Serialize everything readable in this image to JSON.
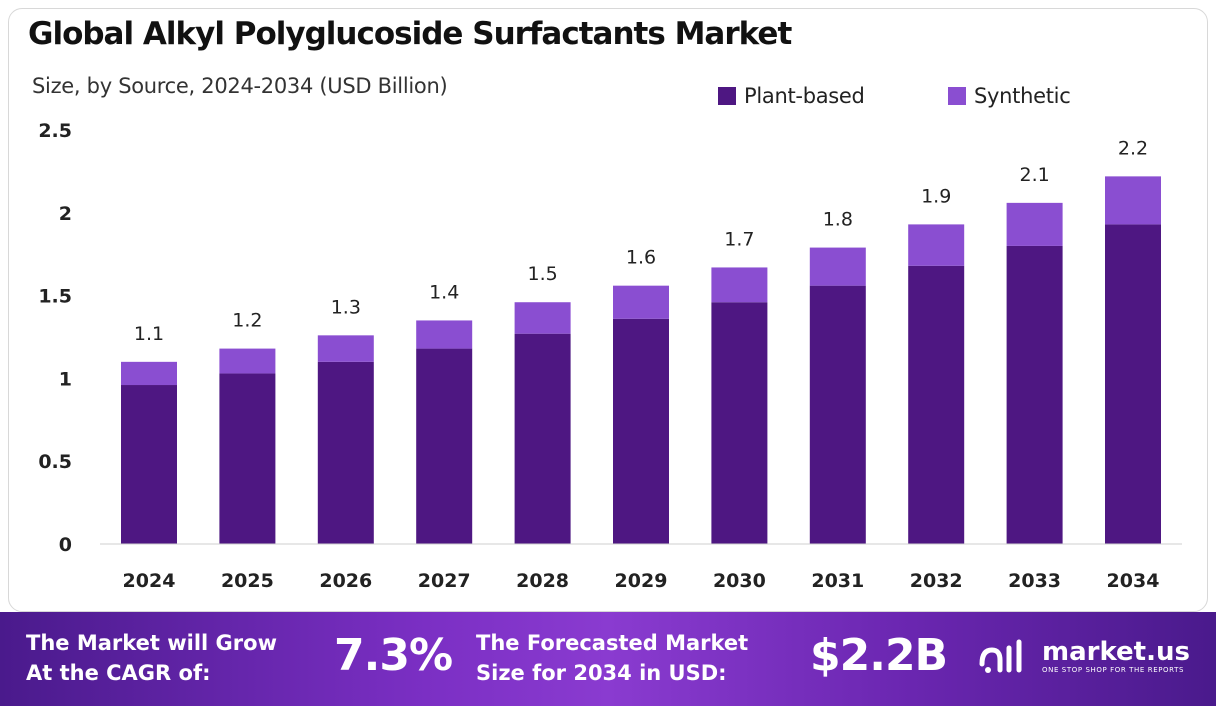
{
  "title": "Global Alkyl Polyglucoside Surfactants Market",
  "subtitle": "Size, by Source, 2024-2034 (USD Billion)",
  "colors": {
    "plant": "#4e1782",
    "synthetic": "#8a4ed1",
    "text": "#222222"
  },
  "chart_data": {
    "type": "bar",
    "stacked": true,
    "categories": [
      "2024",
      "2025",
      "2026",
      "2027",
      "2028",
      "2029",
      "2030",
      "2031",
      "2032",
      "2033",
      "2034"
    ],
    "series": [
      {
        "name": "Plant-based",
        "values": [
          0.96,
          1.03,
          1.1,
          1.18,
          1.27,
          1.36,
          1.46,
          1.56,
          1.68,
          1.8,
          1.93
        ]
      },
      {
        "name": "Synthetic",
        "values": [
          0.14,
          0.15,
          0.16,
          0.17,
          0.19,
          0.2,
          0.21,
          0.23,
          0.25,
          0.26,
          0.29
        ]
      }
    ],
    "totals_labels": [
      "1.1",
      "1.2",
      "1.3",
      "1.4",
      "1.5",
      "1.6",
      "1.7",
      "1.8",
      "1.9",
      "2.1",
      "2.2"
    ],
    "y_ticks": [
      0,
      0.5,
      1,
      1.5,
      2,
      2.5
    ],
    "y_tick_labels": [
      "0",
      "0.5",
      "1",
      "1.5",
      "2",
      "2.5"
    ],
    "ylim": [
      0,
      2.5
    ],
    "grid": false,
    "legend_position": "top-right",
    "xlabel": "",
    "ylabel": ""
  },
  "banner": {
    "cagr_label_line1": "The Market will Grow",
    "cagr_label_line2": "At the CAGR of:",
    "cagr_value": "7.3%",
    "forecast_label_line1": "The Forecasted Market",
    "forecast_label_line2": "Size for 2034 in USD:",
    "forecast_value": "$2.2B"
  },
  "logo": {
    "name": "market.us",
    "tagline": "ONE STOP SHOP FOR THE REPORTS"
  }
}
